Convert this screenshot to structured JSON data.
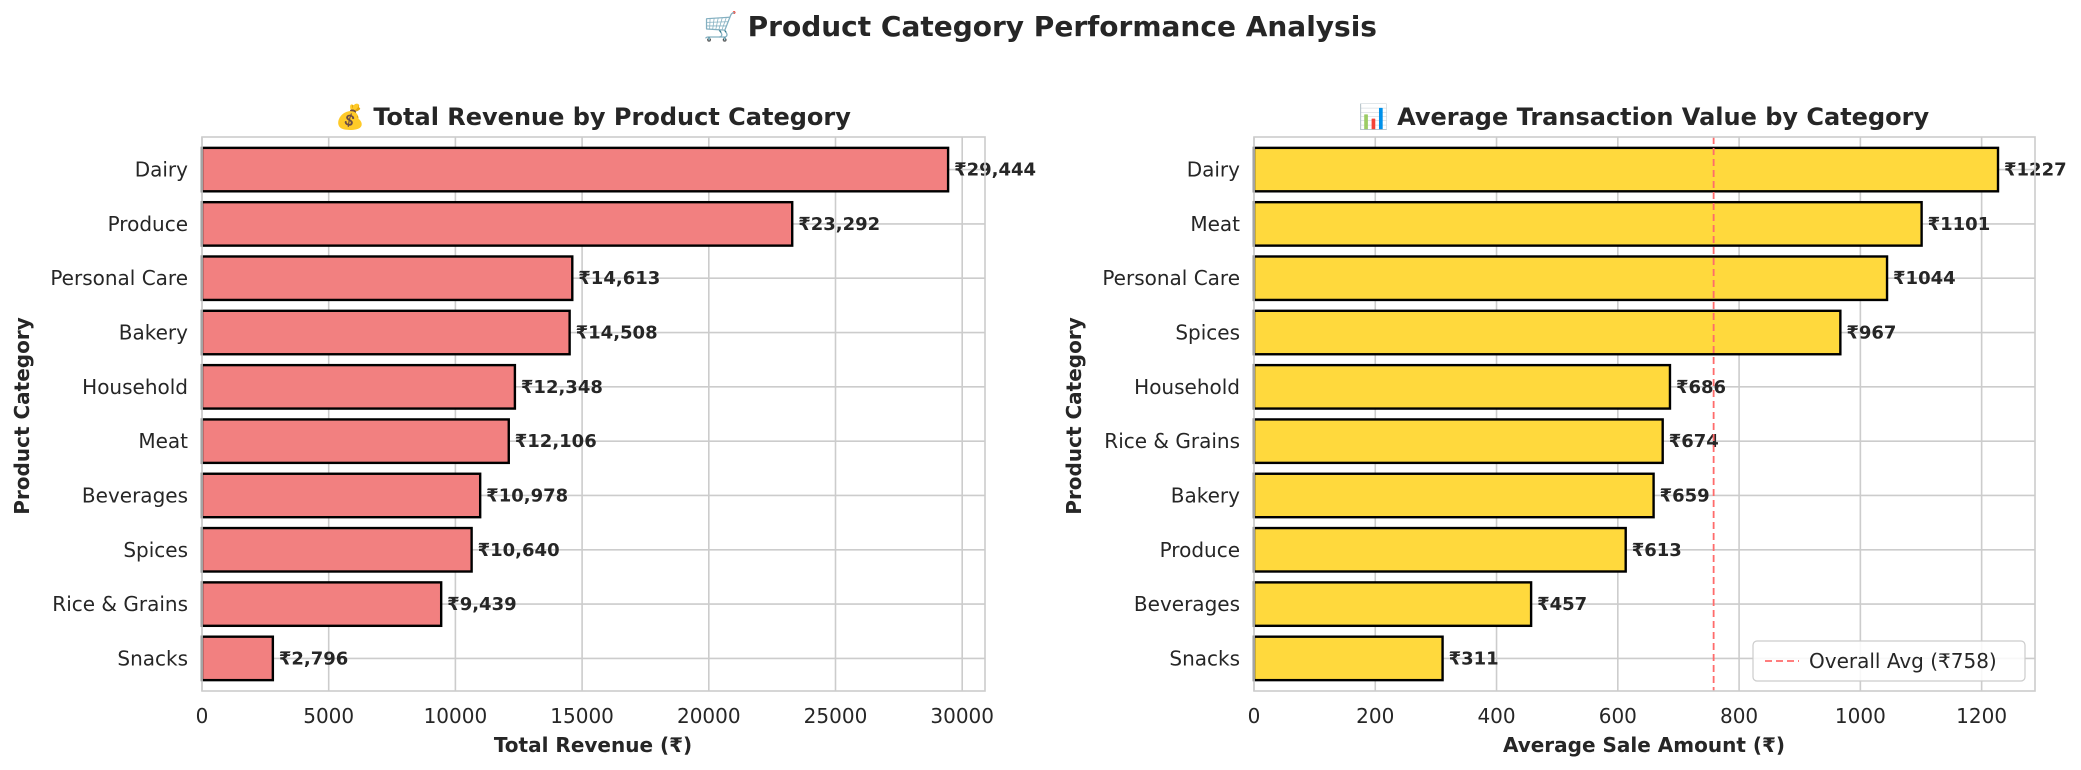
{
  "suptitle": "🛒 Product Category Performance Analysis",
  "chart_data": [
    {
      "type": "bar",
      "orientation": "horizontal",
      "title": "💰 Total Revenue by Product Category",
      "xlabel": "Total Revenue (₹)",
      "ylabel": "Product Category",
      "categories": [
        "Dairy",
        "Produce",
        "Personal Care",
        "Bakery",
        "Household",
        "Meat",
        "Beverages",
        "Spices",
        "Rice & Grains",
        "Snacks"
      ],
      "values": [
        29444,
        23292,
        14613,
        14508,
        12348,
        12106,
        10978,
        10640,
        9439,
        2796
      ],
      "value_labels": [
        "₹29,444",
        "₹23,292",
        "₹14,613",
        "₹14,508",
        "₹12,348",
        "₹12,106",
        "₹10,978",
        "₹10,640",
        "₹9,439",
        "₹2,796"
      ],
      "xlim": [
        0,
        30900
      ],
      "xticks": [
        0,
        5000,
        10000,
        15000,
        20000,
        25000,
        30000
      ],
      "xtick_labels": [
        "0",
        "5000",
        "10000",
        "15000",
        "20000",
        "25000",
        "30000"
      ],
      "bar_color": "#f28080",
      "edge_color": "#000000",
      "grid": true
    },
    {
      "type": "bar",
      "orientation": "horizontal",
      "title": "📊 Average Transaction Value by Category",
      "xlabel": "Average Sale Amount (₹)",
      "ylabel": "Product Category",
      "categories": [
        "Dairy",
        "Meat",
        "Personal Care",
        "Spices",
        "Household",
        "Rice & Grains",
        "Bakery",
        "Produce",
        "Beverages",
        "Snacks"
      ],
      "values": [
        1227,
        1101,
        1044,
        967,
        686,
        674,
        659,
        613,
        457,
        311
      ],
      "value_labels": [
        "₹1227",
        "₹1101",
        "₹1044",
        "₹967",
        "₹686",
        "₹674",
        "₹659",
        "₹613",
        "₹457",
        "₹311"
      ],
      "xlim": [
        0,
        1288
      ],
      "xticks": [
        0,
        200,
        400,
        600,
        800,
        1000,
        1200
      ],
      "xtick_labels": [
        "0",
        "200",
        "400",
        "600",
        "800",
        "1000",
        "1200"
      ],
      "bar_color": "#ffd93d",
      "edge_color": "#000000",
      "grid": true,
      "reference_line": {
        "value": 758,
        "label": "Overall Avg (₹758)",
        "color": "#ff6b6b",
        "style": "dashed"
      },
      "legend_position": "lower-right"
    }
  ]
}
